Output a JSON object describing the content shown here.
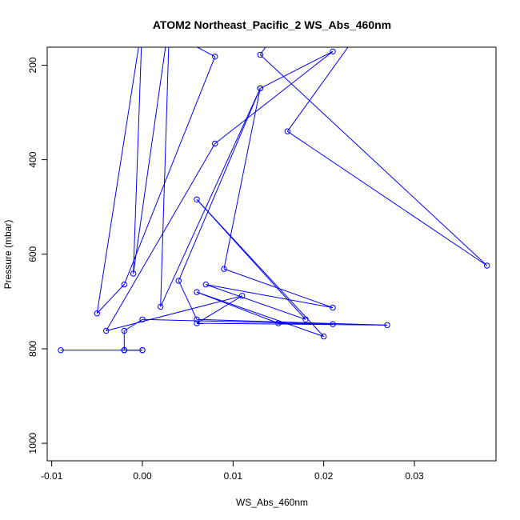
{
  "chart_data": {
    "type": "line",
    "title": "ATOM2 Northeast_Pacific_2 WS_Abs_460nm",
    "xlabel": "WS_Abs_460nm",
    "ylabel": "Pressure (mbar)",
    "xlim": [
      -0.0105,
      0.039
    ],
    "ylim": [
      1037,
      162
    ],
    "y_reversed": true,
    "x_ticks": [
      -0.01,
      0.0,
      0.01,
      0.02,
      0.03
    ],
    "x_tick_labels": [
      "-0.01",
      "0.00",
      "0.01",
      "0.02",
      "0.03"
    ],
    "y_ticks": [
      200,
      400,
      600,
      800,
      1000
    ],
    "y_tick_labels": [
      "200",
      "400",
      "600",
      "800",
      "1000"
    ],
    "grid": false,
    "series": [
      {
        "color": "#0000ff",
        "marker": "open-circle",
        "points": [
          {
            "x": -0.009,
            "y": 803
          },
          {
            "x": -0.002,
            "y": 803
          },
          {
            "x": 0.0,
            "y": 803
          },
          {
            "x": 0.0,
            "y": 803
          },
          {
            "x": -0.002,
            "y": 803
          },
          {
            "x": -0.002,
            "y": 803
          },
          {
            "x": -0.002,
            "y": 762
          },
          {
            "x": 0.0,
            "y": 738
          },
          {
            "x": 0.021,
            "y": 748
          },
          {
            "x": 0.015,
            "y": 746
          },
          {
            "x": 0.006,
            "y": 680
          },
          {
            "x": 0.02,
            "y": 774
          },
          {
            "x": 0.006,
            "y": 484
          },
          {
            "x": 0.018,
            "y": 738
          },
          {
            "x": 0.007,
            "y": 664
          },
          {
            "x": 0.021,
            "y": 713
          },
          {
            "x": 0.009,
            "y": 631
          },
          {
            "x": 0.013,
            "y": 249
          },
          {
            "x": 0.004,
            "y": 656
          },
          {
            "x": 0.006,
            "y": 738
          },
          {
            "x": 0.027,
            "y": 750
          },
          {
            "x": 0.006,
            "y": 746
          },
          {
            "x": 0.011,
            "y": 688
          },
          {
            "x": -0.004,
            "y": 762
          },
          {
            "x": 0.008,
            "y": 366
          },
          {
            "x": 0.021,
            "y": 171
          },
          {
            "x": 0.013,
            "y": 249
          },
          {
            "x": 0.002,
            "y": 711
          },
          {
            "x": 0.003,
            "y": 100
          },
          {
            "x": -0.001,
            "y": 641
          },
          {
            "x": 0.0,
            "y": 100
          },
          {
            "x": 0.008,
            "y": 182
          },
          {
            "x": -0.002,
            "y": 664
          },
          {
            "x": -0.005,
            "y": 725
          },
          {
            "x": 0.0,
            "y": 110
          },
          {
            "x": 0.014,
            "y": 150
          },
          {
            "x": 0.013,
            "y": 178
          },
          {
            "x": 0.038,
            "y": 624
          },
          {
            "x": 0.016,
            "y": 340
          },
          {
            "x": 0.025,
            "y": 100
          }
        ]
      }
    ]
  }
}
